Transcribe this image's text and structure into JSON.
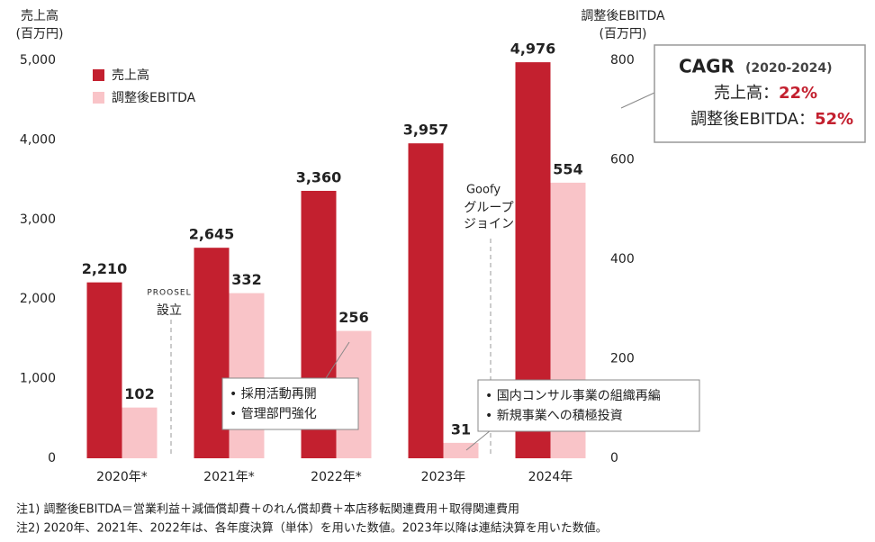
{
  "chart_data": {
    "type": "bar",
    "y_label": [
      "売上高",
      "(百万円)"
    ],
    "y2_label": [
      "調整後EBITDA",
      "(百万円)"
    ],
    "categories": [
      "2020年*",
      "2021年*",
      "2022年*",
      "2023年",
      "2024年"
    ],
    "series": [
      {
        "name": "売上高",
        "color": "#c3202f",
        "values": [
          2210,
          2645,
          3360,
          3957,
          4976
        ],
        "value_labels": [
          "2,210",
          "2,645",
          "3,360",
          "3,957",
          "4,976"
        ]
      },
      {
        "name": "調整後EBITDA",
        "color": "#f9c4c8",
        "values": [
          102,
          332,
          256,
          31,
          554
        ],
        "axis": "y2"
      }
    ],
    "ylim": [
      0,
      5000
    ],
    "yticks": [
      0,
      {
        "value": 1000,
        "label": "1,000"
      },
      {
        "value": 2000,
        "label": "2,000"
      },
      {
        "value": 3000,
        "label": "3,000"
      },
      {
        "value": 4000,
        "label": "4,000"
      },
      {
        "value": 5000,
        "label": "5,000"
      }
    ],
    "y2lim": [
      0,
      800
    ],
    "y2ticks": [
      0,
      200,
      400,
      600,
      800
    ],
    "grid": false,
    "legend": "upper left",
    "events": [
      {
        "logo": "PROOSEL",
        "label": [
          "設立"
        ]
      },
      {
        "logo": "Goofy",
        "label": [
          "グループ",
          "ジョイン"
        ]
      }
    ],
    "callouts": [
      [
        "• 採用活動再開",
        "• 管理部門強化"
      ],
      [
        "• 国内コンサル事業の組織再編",
        "• 新規事業への積極投資"
      ]
    ],
    "cagr": {
      "title": "CAGR",
      "period": "(2020-2024)",
      "rows": [
        {
          "label": "売上高：",
          "value": "22%"
        },
        {
          "label": "調整後EBITDA：",
          "value": "52%"
        }
      ]
    },
    "notes": [
      "注1) 調整後EBITDA＝営業利益＋減価償却費＋のれん償却費＋本店移転関連費用＋取得関連費用",
      "注2) 2020年、2021年、2022年は、各年度決算（単体）を用いた数値。2023年以降は連結決算を用いた数値。"
    ]
  }
}
